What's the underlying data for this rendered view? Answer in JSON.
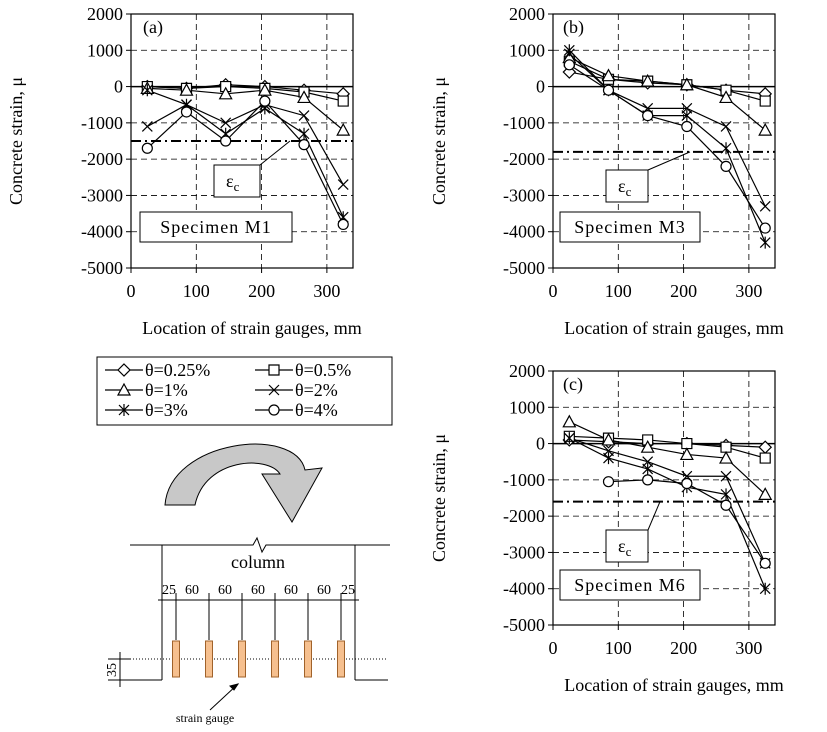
{
  "chart_data": [
    {
      "type": "line",
      "label": "(a)",
      "title": "Specimen M1",
      "y_label": "Concrete strain, μ",
      "x_label": "Location of strain gauges, mm",
      "x": [
        25,
        85,
        145,
        205,
        265,
        325
      ],
      "xlim": [
        0,
        340
      ],
      "xticks": [
        0,
        100,
        200,
        300
      ],
      "ylim": [
        -5000,
        2000
      ],
      "yticks": [
        2000,
        1000,
        0,
        -1000,
        -2000,
        -3000,
        -4000,
        -5000
      ],
      "grid": true,
      "ref_line": {
        "value": -1500,
        "symbol": "ε",
        "subscript": "c"
      },
      "series": [
        {
          "name": "θ=0.25%",
          "marker": "diamond",
          "color": "#000000",
          "values": [
            0,
            -50,
            50,
            0,
            -100,
            -200
          ]
        },
        {
          "name": "θ=0.5%",
          "marker": "square",
          "color": "#000000",
          "values": [
            0,
            -50,
            0,
            -50,
            -150,
            -400
          ]
        },
        {
          "name": "θ=1%",
          "marker": "triangle",
          "color": "#000000",
          "values": [
            -50,
            -100,
            -200,
            -100,
            -300,
            -1200
          ]
        },
        {
          "name": "θ=2%",
          "marker": "x",
          "color": "#000000",
          "values": [
            -1100,
            -500,
            -1000,
            -500,
            -800,
            -2700
          ]
        },
        {
          "name": "θ=3%",
          "marker": "asterisk",
          "color": "#000000",
          "values": [
            -100,
            -500,
            -1300,
            -600,
            -1300,
            -3600
          ]
        },
        {
          "name": "θ=4%",
          "marker": "circle",
          "color": "#000000",
          "values": [
            -1700,
            -700,
            -1500,
            -400,
            -1600,
            -3800
          ]
        }
      ]
    },
    {
      "type": "line",
      "label": "(b)",
      "title": "Specimen M3",
      "y_label": "Concrete strain, μ",
      "x_label": "Location of strain gauges, mm",
      "x": [
        25,
        85,
        145,
        205,
        265,
        325
      ],
      "xlim": [
        0,
        340
      ],
      "xticks": [
        0,
        100,
        200,
        300
      ],
      "ylim": [
        -5000,
        2000
      ],
      "yticks": [
        2000,
        1000,
        0,
        -1000,
        -2000,
        -3000,
        -4000,
        -5000
      ],
      "grid": true,
      "ref_line": {
        "value": -1800,
        "symbol": "ε",
        "subscript": "c"
      },
      "series": [
        {
          "marker": "diamond",
          "color": "#000000",
          "values": [
            400,
            200,
            100,
            50,
            -100,
            -200
          ]
        },
        {
          "marker": "square",
          "color": "#000000",
          "values": [
            700,
            200,
            150,
            50,
            -100,
            -400
          ]
        },
        {
          "marker": "triangle",
          "color": "#000000",
          "values": [
            800,
            300,
            150,
            50,
            -300,
            -1200
          ]
        },
        {
          "marker": "x",
          "color": "#000000",
          "values": [
            900,
            -100,
            -600,
            -600,
            -1100,
            -3300
          ]
        },
        {
          "marker": "asterisk",
          "color": "#000000",
          "values": [
            1000,
            -100,
            -800,
            -800,
            -1700,
            -4300
          ]
        },
        {
          "marker": "circle",
          "color": "#000000",
          "values": [
            600,
            -100,
            -800,
            -1100,
            -2200,
            -3900
          ]
        }
      ]
    },
    {
      "type": "line",
      "label": "(c)",
      "title": "Specimen M6",
      "y_label": "Concrete strain, μ",
      "x_label": "Location of strain gauges, mm",
      "x": [
        25,
        85,
        145,
        205,
        265,
        325
      ],
      "xlim": [
        0,
        340
      ],
      "xticks": [
        0,
        100,
        200,
        300
      ],
      "ylim": [
        -5000,
        2000
      ],
      "yticks": [
        2000,
        1000,
        0,
        -1000,
        -2000,
        -3000,
        -4000,
        -5000
      ],
      "grid": true,
      "ref_line": {
        "value": -1600,
        "symbol": "ε",
        "subscript": "c"
      },
      "series": [
        {
          "marker": "diamond",
          "color": "#000000",
          "values": [
            100,
            50,
            0,
            0,
            -50,
            -100
          ]
        },
        {
          "marker": "square",
          "color": "#000000",
          "values": [
            200,
            150,
            100,
            0,
            -100,
            -400
          ]
        },
        {
          "marker": "triangle",
          "color": "#000000",
          "values": [
            600,
            100,
            -100,
            -300,
            -400,
            -1400
          ]
        },
        {
          "marker": "x",
          "color": "#000000",
          "values": [
            150,
            -200,
            -500,
            -900,
            -900,
            -3300
          ]
        },
        {
          "marker": "asterisk",
          "color": "#000000",
          "values": [
            150,
            -400,
            -700,
            -1200,
            -1400,
            -4000
          ]
        },
        {
          "marker": "circle",
          "color": "#000000",
          "values": [
            null,
            -1050,
            -1000,
            -1100,
            -1700,
            -3300
          ]
        }
      ]
    }
  ],
  "diagram": {
    "title": "column",
    "dimensions": [
      25,
      60,
      60,
      60,
      60,
      60,
      25
    ],
    "height_dim": 35,
    "gauge_label": "strain gauge"
  }
}
